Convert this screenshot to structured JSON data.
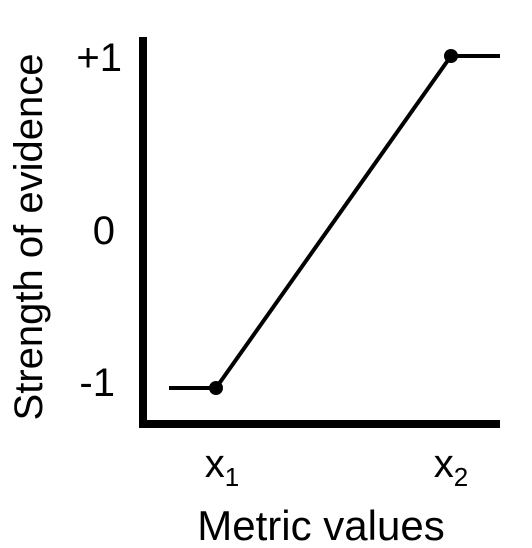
{
  "chart_data": {
    "type": "line",
    "title": "",
    "xlabel": "Metric values",
    "ylabel": "Strength of evidence",
    "ylim": [
      -1,
      1
    ],
    "y_ticks": [
      "+1",
      "0",
      "-1"
    ],
    "y_tick_values": [
      1,
      0,
      -1
    ],
    "x_ticks": [
      {
        "base": "x",
        "sub": "1"
      },
      {
        "base": "x",
        "sub": "2"
      }
    ],
    "series": [
      {
        "points": [
          {
            "x": "below x1",
            "y": -1
          },
          {
            "x": "x1",
            "y": -1
          },
          {
            "x": "x2",
            "y": 1
          },
          {
            "x": "above x2",
            "y": 1
          }
        ]
      }
    ],
    "markers_at": [
      "x1",
      "x2"
    ],
    "grid": false,
    "legend": "none",
    "colors": {
      "line": "#000000",
      "axis": "#000000"
    }
  }
}
